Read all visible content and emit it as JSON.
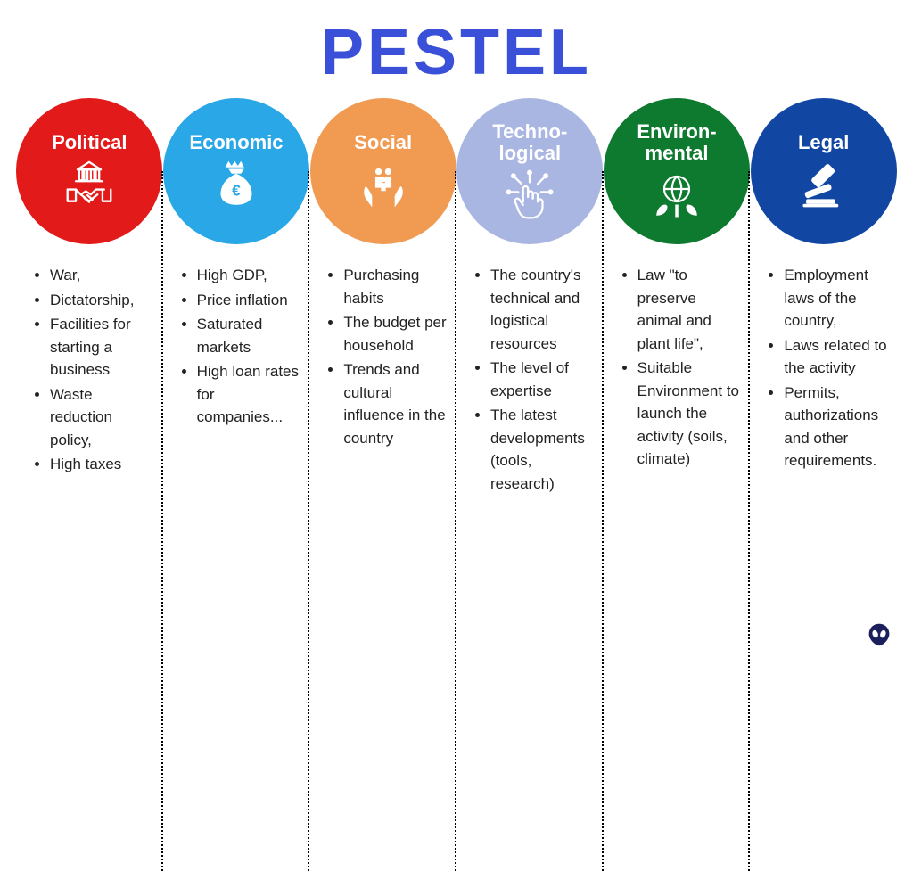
{
  "title": "PESTEL",
  "title_color": "#3a50d9",
  "background_color": "#ffffff",
  "divider_color": "#000000",
  "categories": [
    {
      "label": "Political",
      "color": "#e21a1a",
      "icon": "government-handshake-icon",
      "items": [
        "War,",
        "Dictatorship,",
        "Facilities for starting a business",
        "Waste reduction policy,",
        "High taxes"
      ]
    },
    {
      "label": "Economic",
      "color": "#2aa7e6",
      "icon": "money-bag-icon",
      "items": [
        "High GDP,",
        "Price inflation",
        "Saturated markets",
        "High loan rates for companies..."
      ]
    },
    {
      "label": "Social",
      "color": "#f19a52",
      "icon": "family-hands-icon",
      "items": [
        " Purchasing habits",
        "The budget per household",
        "Trends and cultural influence in the country"
      ]
    },
    {
      "label": "Techno-\nlogical",
      "color": "#a9b6e2",
      "icon": "tech-hand-icon",
      "items": [
        "The country's technical and logistical resources",
        "The level of expertise",
        "The latest developments (tools, research)"
      ]
    },
    {
      "label": "Environ-\nmental",
      "color": "#0d7a2f",
      "icon": "globe-leaf-icon",
      "items": [
        "Law \"to preserve animal and plant life\",",
        "Suitable Environment to launch the activity (soils, climate)"
      ]
    },
    {
      "label": "Legal",
      "color": "#1146a3",
      "icon": "gavel-icon",
      "items": [
        "Employment laws of the country,",
        "Laws related to the activity",
        "Permits, authorizations and other requirements."
      ]
    }
  ],
  "alien_color": "#1b1f5c",
  "typography": {
    "title_fontsize": 72,
    "circle_label_fontsize": 22,
    "item_fontsize": 17
  }
}
